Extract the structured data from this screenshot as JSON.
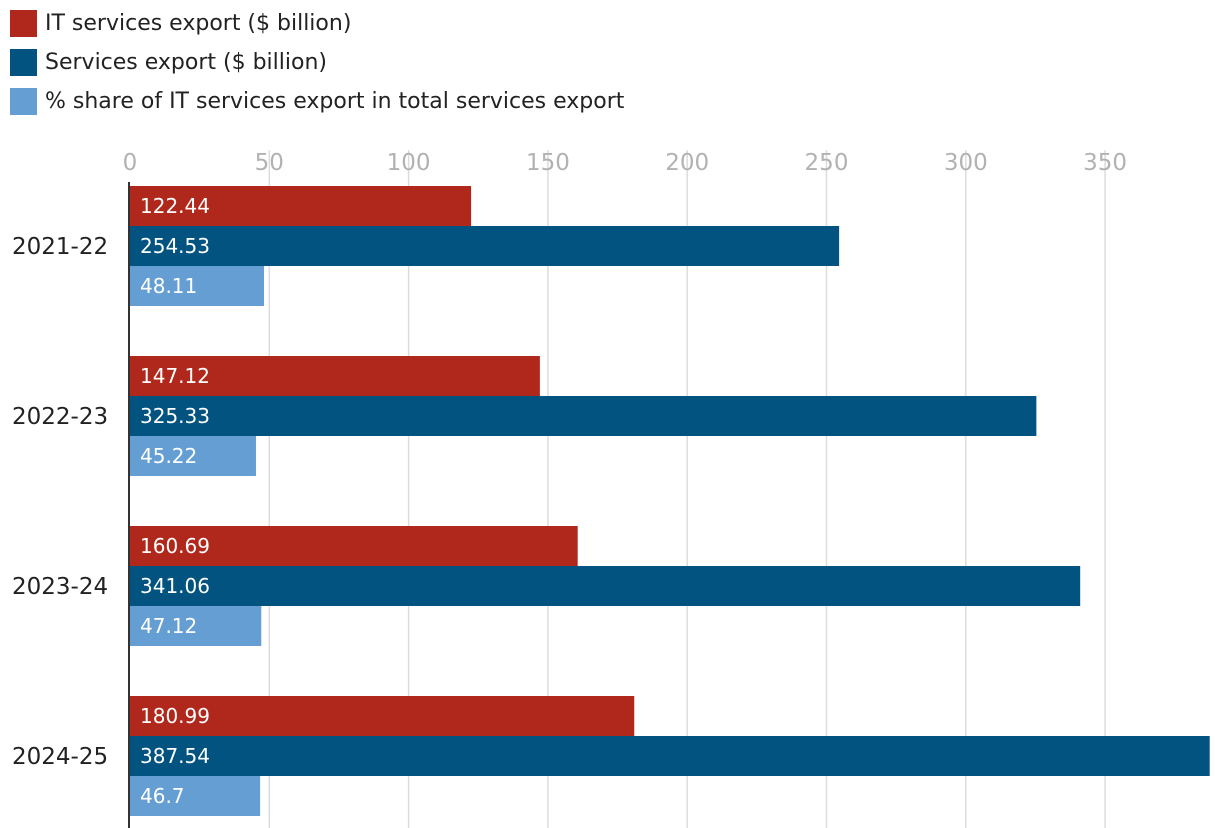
{
  "chart_data": {
    "type": "bar",
    "orientation": "horizontal",
    "title": "",
    "xlabel": "",
    "ylabel": "",
    "xlim": [
      0,
      387.54
    ],
    "xticks": [
      0,
      50,
      100,
      150,
      200,
      250,
      300,
      350
    ],
    "grid": true,
    "legend_position": "top-left",
    "categories": [
      "2021-22",
      "2022-23",
      "2023-24",
      "2024-25"
    ],
    "series": [
      {
        "name": "IT services export ($ billion)",
        "color": "#b0281b",
        "values": [
          122.44,
          147.12,
          160.69,
          180.99
        ],
        "labels": [
          "122.44",
          "147.12",
          "160.69",
          "180.99"
        ]
      },
      {
        "name": "Services export ($ billion)",
        "color": "#02537f",
        "values": [
          254.53,
          325.33,
          341.06,
          387.54
        ],
        "labels": [
          "254.53",
          "325.33",
          "341.06",
          "387.54"
        ]
      },
      {
        "name": "% share of IT services export in total services export",
        "color": "#659ed3",
        "values": [
          48.11,
          45.22,
          47.12,
          46.7
        ],
        "labels": [
          "48.11",
          "45.22",
          "47.12",
          "46.7"
        ]
      }
    ]
  }
}
